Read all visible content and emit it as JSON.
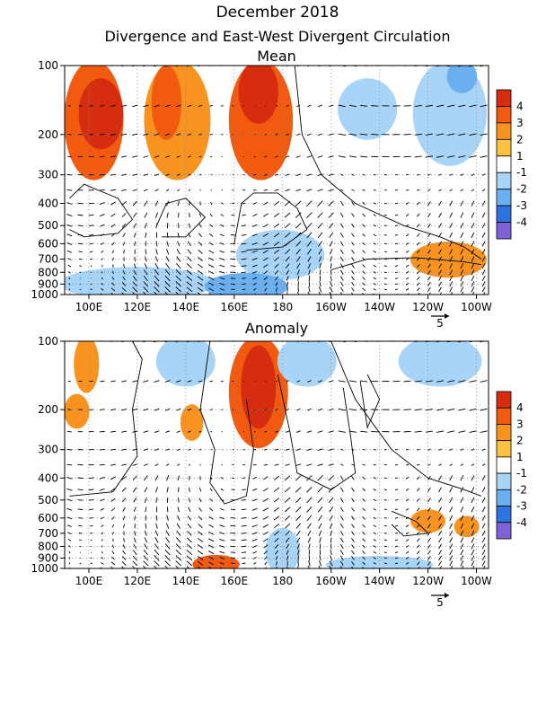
{
  "title": "December 2018",
  "subtitle": "Divergence and East-West Divergent Circulation",
  "colorbar": {
    "labels": [
      "4",
      "3",
      "2",
      "1",
      "-1",
      "-2",
      "-3",
      "-4"
    ],
    "colors": [
      "#d62d10",
      "#f25a0f",
      "#f99320",
      "#fcc13e",
      "#ffffff",
      "#a8d4f7",
      "#6ab0f0",
      "#2f73e1",
      "#7d61d6"
    ]
  },
  "reference_vector": "5",
  "chart_data": [
    {
      "type": "heatmap",
      "panel_title": "Mean",
      "x_ticks": [
        "100E",
        "120E",
        "140E",
        "160E",
        "180",
        "160W",
        "140W",
        "120W",
        "100W"
      ],
      "x_range": [
        90,
        265
      ],
      "y_ticks": [
        "100",
        "200",
        "300",
        "400",
        "500",
        "600",
        "700",
        "800",
        "900",
        "1000"
      ],
      "y_scale": "log",
      "y_range": [
        1000,
        100
      ],
      "grid": true,
      "regions": [
        {
          "lon": [
            92,
            112
          ],
          "p": [
            100,
            300
          ],
          "value": 2.5
        },
        {
          "lon": [
            98,
            112
          ],
          "p": [
            120,
            220
          ],
          "value": 3.5
        },
        {
          "lon": [
            125,
            148
          ],
          "p": [
            100,
            300
          ],
          "value": 2.0
        },
        {
          "lon": [
            128,
            136
          ],
          "p": [
            105,
            200
          ],
          "value": 3.0
        },
        {
          "lon": [
            160,
            182
          ],
          "p": [
            100,
            300
          ],
          "value": 3.0
        },
        {
          "lon": [
            164,
            176
          ],
          "p": [
            100,
            170
          ],
          "value": 4.0
        },
        {
          "lon": [
            205,
            225
          ],
          "p": [
            120,
            200
          ],
          "value": -1.5
        },
        {
          "lon": [
            236,
            262
          ],
          "p": [
            100,
            260
          ],
          "value": -1.5
        },
        {
          "lon": [
            250,
            258
          ],
          "p": [
            100,
            125
          ],
          "value": -2.5
        },
        {
          "lon": [
            163,
            195
          ],
          "p": [
            550,
            820
          ],
          "value": -1.5
        },
        {
          "lon": [
            235,
            262
          ],
          "p": [
            620,
            800
          ],
          "value": 2.0
        },
        {
          "lon": [
            90,
            150
          ],
          "p": [
            800,
            1000
          ],
          "value": -1.5
        },
        {
          "lon": [
            150,
            180
          ],
          "p": [
            850,
            1000
          ],
          "value": -2.5
        }
      ],
      "contours": [
        0
      ]
    },
    {
      "type": "heatmap",
      "panel_title": "Anomaly",
      "x_ticks": [
        "100E",
        "120E",
        "140E",
        "160E",
        "180",
        "160W",
        "140W",
        "120W",
        "100W"
      ],
      "x_range": [
        90,
        265
      ],
      "y_ticks": [
        "100",
        "200",
        "300",
        "400",
        "500",
        "600",
        "700",
        "800",
        "900",
        "1000"
      ],
      "y_scale": "log",
      "y_range": [
        1000,
        100
      ],
      "grid": true,
      "regions": [
        {
          "lon": [
            96,
            102
          ],
          "p": [
            100,
            160
          ],
          "value": 1.5
        },
        {
          "lon": [
            92,
            98
          ],
          "p": [
            180,
            230
          ],
          "value": 1.5
        },
        {
          "lon": [
            130,
            150
          ],
          "p": [
            100,
            150
          ],
          "value": -1.5
        },
        {
          "lon": [
            140,
            145
          ],
          "p": [
            200,
            260
          ],
          "value": 1.5
        },
        {
          "lon": [
            160,
            180
          ],
          "p": [
            100,
            280
          ],
          "value": 2.5
        },
        {
          "lon": [
            165,
            175
          ],
          "p": [
            110,
            230
          ],
          "value": 3.5
        },
        {
          "lon": [
            180,
            200
          ],
          "p": [
            100,
            150
          ],
          "value": -1.5
        },
        {
          "lon": [
            230,
            260
          ],
          "p": [
            100,
            150
          ],
          "value": -1.5
        },
        {
          "lon": [
            235,
            245
          ],
          "p": [
            580,
            660
          ],
          "value": 2.0
        },
        {
          "lon": [
            253,
            259
          ],
          "p": [
            620,
            690
          ],
          "value": 2.0
        },
        {
          "lon": [
            145,
            160
          ],
          "p": [
            920,
            1000
          ],
          "value": 2.5
        },
        {
          "lon": [
            175,
            185
          ],
          "p": [
            700,
            1000
          ],
          "value": -1.5
        },
        {
          "lon": [
            200,
            240
          ],
          "p": [
            930,
            1000
          ],
          "value": -1.5
        }
      ],
      "contours": [
        0
      ]
    }
  ]
}
